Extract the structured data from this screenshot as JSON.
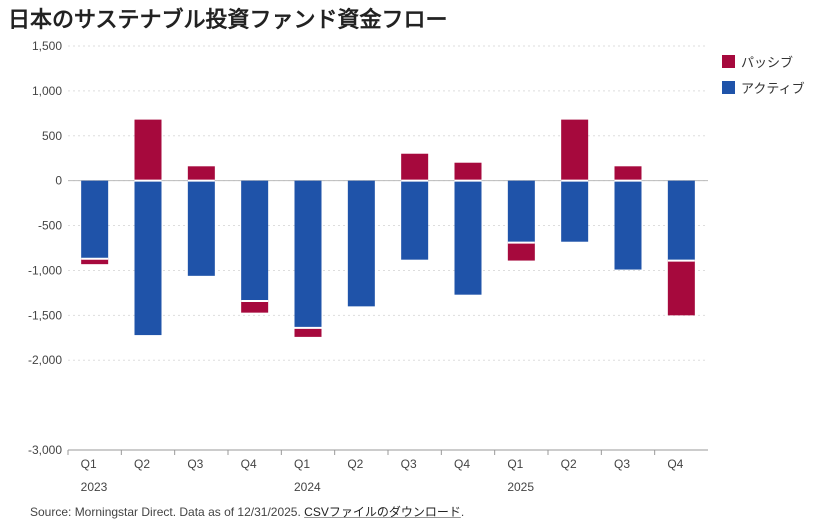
{
  "title": "日本のサステナブル投資ファンド資金フロー",
  "legend": [
    {
      "name": "パッシブ",
      "color": "#a6093d"
    },
    {
      "name": "アクティブ",
      "color": "#1f53a9"
    }
  ],
  "source": {
    "text": "Source: Morningstar Direct. Data as of 12/31/2025.",
    "link": "CSVファイルのダウンロード",
    "tail": "."
  },
  "chart_data": {
    "type": "bar",
    "stacked": true,
    "categories": [
      "Q1",
      "Q2",
      "Q3",
      "Q4",
      "Q1",
      "Q2",
      "Q3",
      "Q4",
      "Q1",
      "Q2",
      "Q3",
      "Q4"
    ],
    "years": [
      {
        "label": "2023",
        "start_index": 0
      },
      {
        "label": "2024",
        "start_index": 4
      },
      {
        "label": "2025",
        "start_index": 8
      }
    ],
    "series": [
      {
        "name": "アクティブ",
        "color": "#1f53a9",
        "values": [
          -870,
          -1720,
          -1060,
          -1340,
          -1640,
          -1400,
          -880,
          -1270,
          -690,
          -680,
          -990,
          -890
        ]
      },
      {
        "name": "パッシブ",
        "color": "#a6093d",
        "values": [
          -60,
          680,
          160,
          -130,
          -100,
          0,
          300,
          200,
          -200,
          680,
          160,
          -610
        ]
      }
    ],
    "ylim": [
      -3000,
      1500
    ],
    "yticks": [
      {
        "value": 1500,
        "label": "1,500"
      },
      {
        "value": 1000,
        "label": "1,000"
      },
      {
        "value": 500,
        "label": "500"
      },
      {
        "value": 0,
        "label": "0"
      },
      {
        "value": -500,
        "label": "-500"
      },
      {
        "value": -1000,
        "label": "-1,000"
      },
      {
        "value": -1500,
        "label": "-1,500"
      },
      {
        "value": -2000,
        "label": "-2,000"
      },
      {
        "value": -3000,
        "label": "-3,000"
      }
    ],
    "grid": true,
    "legend_position": "top-right"
  }
}
